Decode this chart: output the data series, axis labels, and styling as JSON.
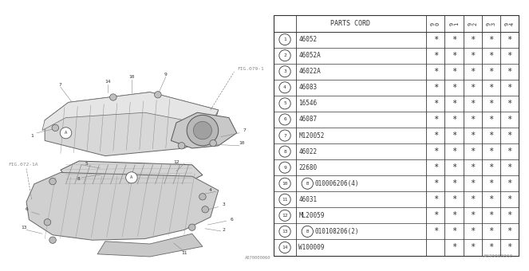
{
  "rows": [
    {
      "num": "1",
      "bold_b": false,
      "part": "46052",
      "stars": [
        true,
        true,
        true,
        true,
        true
      ]
    },
    {
      "num": "2",
      "bold_b": false,
      "part": "46052A",
      "stars": [
        true,
        true,
        true,
        true,
        true
      ]
    },
    {
      "num": "3",
      "bold_b": false,
      "part": "46022A",
      "stars": [
        true,
        true,
        true,
        true,
        true
      ]
    },
    {
      "num": "4",
      "bold_b": false,
      "part": "46083",
      "stars": [
        true,
        true,
        true,
        true,
        true
      ]
    },
    {
      "num": "5",
      "bold_b": false,
      "part": "16546",
      "stars": [
        true,
        true,
        true,
        true,
        true
      ]
    },
    {
      "num": "6",
      "bold_b": false,
      "part": "46087",
      "stars": [
        true,
        true,
        true,
        true,
        true
      ]
    },
    {
      "num": "7",
      "bold_b": false,
      "part": "M120052",
      "stars": [
        true,
        true,
        true,
        true,
        true
      ]
    },
    {
      "num": "8",
      "bold_b": false,
      "part": "46022",
      "stars": [
        true,
        true,
        true,
        true,
        true
      ]
    },
    {
      "num": "9",
      "bold_b": false,
      "part": "22680",
      "stars": [
        true,
        true,
        true,
        true,
        true
      ]
    },
    {
      "num": "10",
      "bold_b": true,
      "part": "010006206(4)",
      "stars": [
        true,
        true,
        true,
        true,
        true
      ]
    },
    {
      "num": "11",
      "bold_b": false,
      "part": "46031",
      "stars": [
        true,
        true,
        true,
        true,
        true
      ]
    },
    {
      "num": "12",
      "bold_b": false,
      "part": "ML20059",
      "stars": [
        true,
        true,
        true,
        true,
        true
      ]
    },
    {
      "num": "13",
      "bold_b": true,
      "part": "010108206(2)",
      "stars": [
        true,
        true,
        true,
        true,
        true
      ]
    },
    {
      "num": "14",
      "bold_b": false,
      "part": "W100009",
      "stars": [
        false,
        true,
        true,
        true,
        true
      ]
    }
  ],
  "year_cols": [
    "9\n0",
    "9\n1",
    "9\n2",
    "9\n3",
    "9\n4"
  ],
  "fig_label": "A070000060",
  "diagram_ref1": "FIG.079-1",
  "diagram_ref2": "FIG.072-1A",
  "bg_color": "#ffffff",
  "line_color": "#333333",
  "gray_color": "#888888",
  "light_gray": "#cccccc",
  "medium_gray": "#aaaaaa"
}
